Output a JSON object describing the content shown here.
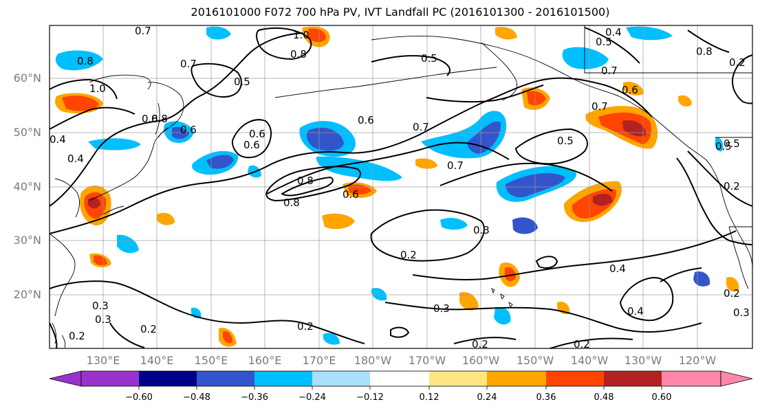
{
  "title": "2016101000 F072 700 hPa PV, IVT Landfall PC (2016101300 - 2016101500)",
  "lat_labels": [
    "60°N",
    "50°N",
    "40°N",
    "30°N",
    "20°N"
  ],
  "lon_labels": [
    "130°E",
    "140°E",
    "150°E",
    "160°E",
    "170°E",
    "180°W",
    "170°W",
    "160°W",
    "150°W",
    "140°W",
    "130°W",
    "120°W"
  ],
  "colorbar": {
    "tick_labels": [
      "−0.60",
      "−0.48",
      "−0.36",
      "−0.24",
      "−0.12",
      "0.12",
      "0.24",
      "0.36",
      "0.48",
      "0.60"
    ],
    "colors": [
      "#9933cc",
      "#00008b",
      "#3355cc",
      "#00bfff",
      "#aadfff",
      "#ffffff",
      "#ffe680",
      "#ffa500",
      "#ff4500",
      "#b22222",
      "#ff88aa"
    ]
  },
  "contour_labels": [
    "0.7",
    "0.8",
    "1.0",
    "0.8",
    "0.5",
    "0.5",
    "0.8",
    "0.6",
    "0.4",
    "0.4",
    "0.6",
    "0.6",
    "0.7",
    "0.5",
    "0.7",
    "0.4",
    "0.5",
    "0.8",
    "0.7",
    "0.6",
    "0.5",
    "0.8",
    "0.8",
    "0.6",
    "0.7",
    "0.3",
    "0.2",
    "0.3",
    "0.3",
    "0.4",
    "0.2",
    "0.2",
    "0.2",
    "0.3",
    "0.4",
    "0.2",
    "0.2",
    "0.5",
    "0.2",
    "0.2",
    "0.3",
    "0.2",
    "1.0",
    "0.8",
    "0.6",
    "0.7"
  ],
  "map_colors": {
    "positive": [
      "#ffe680",
      "#ffa500",
      "#ff4500",
      "#b22222"
    ],
    "negative": [
      "#aadfff",
      "#00bfff",
      "#3355cc",
      "#00008b"
    ]
  }
}
